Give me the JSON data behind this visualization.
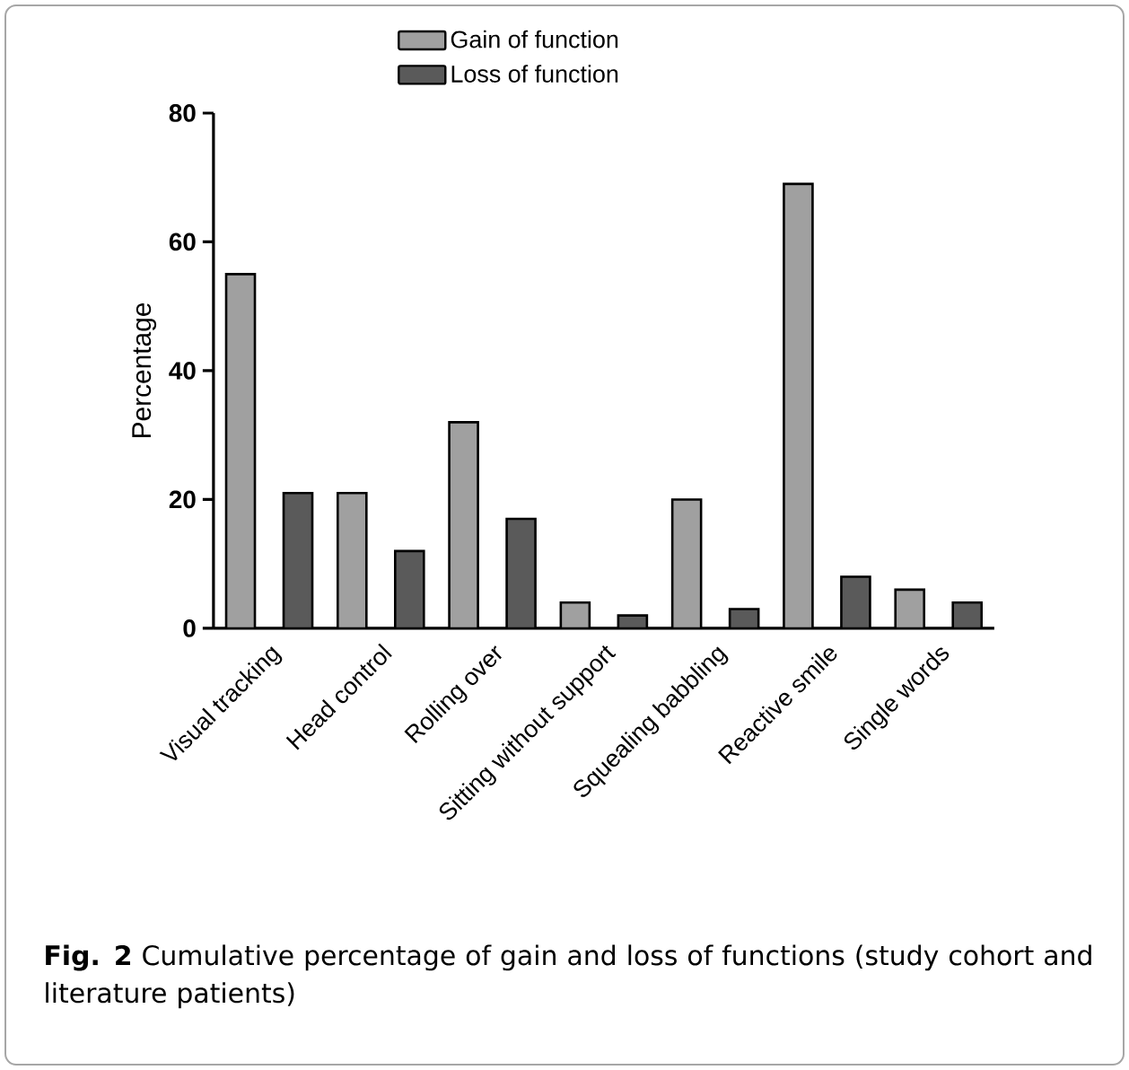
{
  "chart_data": {
    "type": "bar",
    "ylabel": "Percentage",
    "categories": [
      "Visual tracking",
      "Head control",
      "Rolling over",
      "Sitting without support",
      "Squealing babbling",
      "Reactive smile",
      "Single words"
    ],
    "series": [
      {
        "name": "Gain of function",
        "color": "#a0a0a0",
        "values": [
          55,
          21,
          32,
          4,
          20,
          69,
          6
        ]
      },
      {
        "name": "Loss of function",
        "color": "#5a5a5a",
        "values": [
          21,
          12,
          17,
          2,
          3,
          8,
          4
        ]
      }
    ],
    "ylim": [
      0,
      80
    ],
    "yticks": [
      0,
      20,
      40,
      60,
      80
    ],
    "legend": "top",
    "annotations": [
      "**Fig. 2** Cumulative percentage of gain and loss of functions (study cohort and literature patients)"
    ]
  }
}
